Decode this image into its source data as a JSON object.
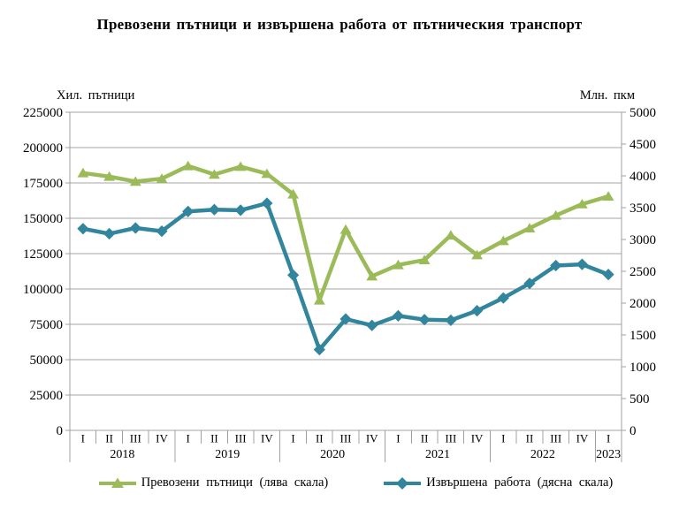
{
  "title": "Превозени пътници и извършена работа от пътническия транспорт",
  "left_axis": {
    "header": "Хил. пътници",
    "ticks": [
      0,
      25000,
      50000,
      75000,
      100000,
      125000,
      150000,
      175000,
      200000,
      225000
    ]
  },
  "right_axis": {
    "header": "Млн. пкм",
    "ticks": [
      0,
      500,
      1000,
      1500,
      2000,
      2500,
      3000,
      3500,
      4000,
      4500,
      5000
    ]
  },
  "chart_data": {
    "type": "line",
    "title": "Превозени пътници и извършена работа от пътническия транспорт",
    "grid": "horizontal",
    "left_ylim": [
      0,
      225000
    ],
    "right_ylim": [
      0,
      5000
    ],
    "legend_position": "bottom",
    "groups": [
      {
        "year": "2018",
        "quarters": [
          "I",
          "II",
          "III",
          "IV"
        ]
      },
      {
        "year": "2019",
        "quarters": [
          "I",
          "II",
          "III",
          "IV"
        ]
      },
      {
        "year": "2020",
        "quarters": [
          "I",
          "II",
          "III",
          "IV"
        ]
      },
      {
        "year": "2021",
        "quarters": [
          "I",
          "II",
          "III",
          "IV"
        ]
      },
      {
        "year": "2022",
        "quarters": [
          "I",
          "II",
          "III",
          "IV"
        ]
      },
      {
        "year": "2023",
        "quarters": [
          "I"
        ]
      }
    ],
    "series": [
      {
        "name": "Превозени пътници (лява скала)",
        "axis": "left",
        "unit": "хил. пътници",
        "color": "#9BBB59",
        "marker": "triangle",
        "values": [
          182000,
          179500,
          176000,
          178000,
          187000,
          181000,
          186500,
          181500,
          167000,
          92000,
          142000,
          109000,
          117000,
          120500,
          138000,
          124000,
          134000,
          143000,
          152000,
          160000,
          165500
        ]
      },
      {
        "name": "Извършена работа (дясна скала)",
        "axis": "right",
        "unit": "млн. пкм",
        "color": "#31859C",
        "marker": "diamond",
        "values": [
          3170,
          3090,
          3180,
          3130,
          3440,
          3470,
          3460,
          3570,
          2440,
          1270,
          1750,
          1650,
          1800,
          1740,
          1730,
          1880,
          2080,
          2310,
          2590,
          2610,
          2450
        ]
      }
    ],
    "colors": {
      "grid": "#A6A6A6",
      "axis": "#A0A0A0",
      "text": "#000000"
    }
  }
}
